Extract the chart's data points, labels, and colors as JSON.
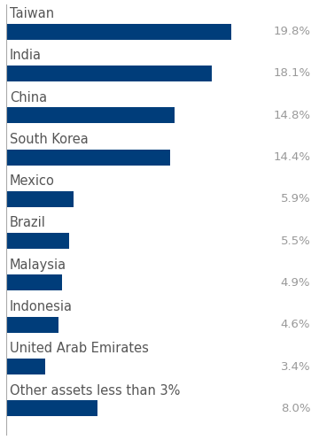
{
  "categories": [
    "Taiwan",
    "India",
    "China",
    "South Korea",
    "Mexico",
    "Brazil",
    "Malaysia",
    "Indonesia",
    "United Arab Emirates",
    "Other assets less than 3%"
  ],
  "values": [
    19.8,
    18.1,
    14.8,
    14.4,
    5.9,
    5.5,
    4.9,
    4.6,
    3.4,
    8.0
  ],
  "labels": [
    "19.8%",
    "18.1%",
    "14.8%",
    "14.4%",
    "5.9%",
    "5.5%",
    "4.9%",
    "4.6%",
    "3.4%",
    "8.0%"
  ],
  "bar_color": "#003d7a",
  "background_color": "#ffffff",
  "label_color": "#999999",
  "category_color": "#555555",
  "xlim": [
    0,
    27
  ],
  "bar_height": 0.38,
  "label_fontsize": 9.5,
  "category_fontsize": 10.5,
  "left_line_color": "#aaaaaa"
}
